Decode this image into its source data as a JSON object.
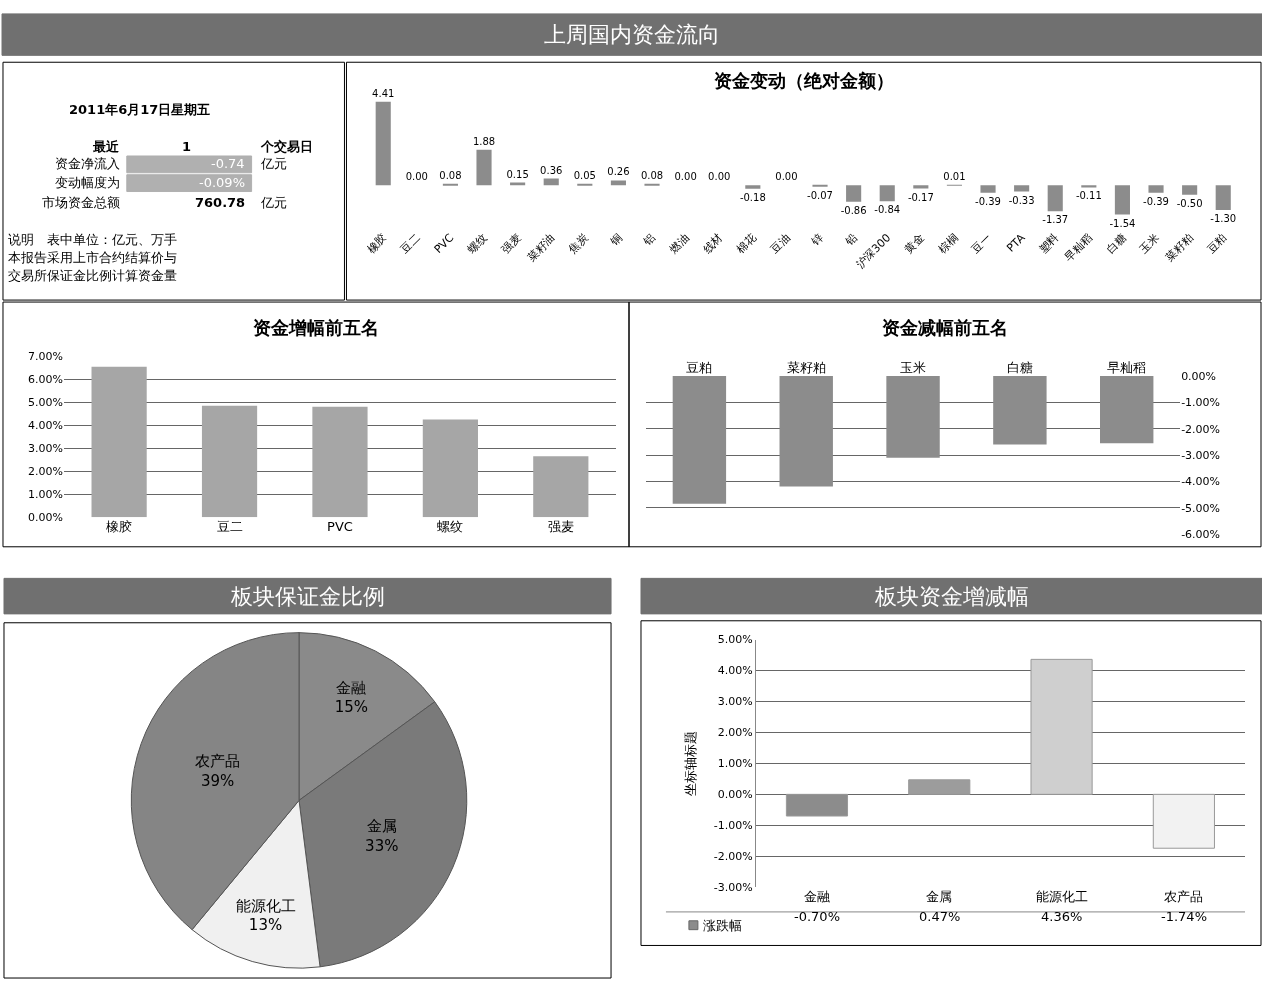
{
  "chart_data": [
    {
      "type": "other",
      "title": "上周国内资金流向",
      "annotations": [
        "2011年6月17日星期五",
        "最近",
        "1",
        "个交易日",
        "资金净流入",
        "-0.74",
        "亿元",
        "变动幅度为",
        "-0.09%",
        "市场资金总额",
        "760.78",
        "亿元",
        "说明　表中单位：亿元、万手",
        "本报告采用上市合约结算价与",
        "交易所保证金比例计算资金量"
      ]
    },
    {
      "type": "bar",
      "title": "资金变动（绝对金额）",
      "color": "#8c8c8c",
      "categories": [
        "橡胶",
        "豆二",
        "PVC",
        "螺纹",
        "强麦",
        "菜籽油",
        "焦炭",
        "铜",
        "铝",
        "燃油",
        "线材",
        "棉花",
        "豆油",
        "锌",
        "铅",
        "沪深300",
        "黄金",
        "棕榈",
        "豆一",
        "PTA",
        "塑料",
        "早籼稻",
        "白糖",
        "玉米",
        "菜籽粕",
        "豆粕"
      ],
      "values": [
        4.41,
        0.0,
        0.08,
        1.88,
        0.15,
        0.36,
        0.05,
        0.26,
        0.08,
        0.0,
        0.0,
        -0.18,
        0.0,
        -0.07,
        -0.86,
        -0.84,
        -0.17,
        0.01,
        -0.39,
        -0.33,
        -1.37,
        -0.11,
        -1.54,
        -0.39,
        -0.5,
        -1.3
      ],
      "value_labels": [
        "4.41",
        "0.00",
        "0.08",
        "1.88",
        "0.15",
        "0.36",
        "0.05",
        "0.26",
        "0.08",
        "0.00",
        "0.00",
        "-0.18",
        "0.00",
        "-0.07",
        "-0.86",
        "-0.84",
        "-0.17",
        "0.01",
        "-0.39",
        "-0.33",
        "-1.37",
        "-0.11",
        "-1.54",
        "-0.39",
        "-0.50",
        "-1.30"
      ]
    },
    {
      "type": "bar",
      "title": "资金增幅前五名",
      "color": "#a6a6a6",
      "categories": [
        "橡胶",
        "豆二",
        "PVC",
        "螺纹",
        "强麦"
      ],
      "values": [
        6.55,
        4.85,
        4.8,
        4.25,
        2.65
      ],
      "ylim": [
        0,
        7
      ],
      "yticks": [
        {
          "value": 0,
          "label": "0.00%"
        },
        {
          "value": 1,
          "label": "1.00%"
        },
        {
          "value": 2,
          "label": "2.00%"
        },
        {
          "value": 3,
          "label": "3.00%"
        },
        {
          "value": 4,
          "label": "4.00%"
        },
        {
          "value": 5,
          "label": "5.00%"
        },
        {
          "value": 6,
          "label": "6.00%"
        },
        {
          "value": 7,
          "label": "7.00%"
        }
      ],
      "grid": "y"
    },
    {
      "type": "bar",
      "title": "资金减幅前五名",
      "color": "#8c8c8c",
      "categories": [
        "豆粕",
        "菜籽粕",
        "玉米",
        "白糖",
        "早籼稻"
      ],
      "values": [
        -4.85,
        -4.2,
        -3.1,
        -2.6,
        -2.55
      ],
      "ylim": [
        -6,
        0
      ],
      "yticks": [
        {
          "value": 0,
          "label": "0.00%"
        },
        {
          "value": -1,
          "label": "-1.00%"
        },
        {
          "value": -2,
          "label": "-2.00%"
        },
        {
          "value": -3,
          "label": "-3.00%"
        },
        {
          "value": -4,
          "label": "-4.00%"
        },
        {
          "value": -5,
          "label": "-5.00%"
        },
        {
          "value": -6,
          "label": "-6.00%"
        }
      ],
      "grid": "y"
    },
    {
      "type": "pie",
      "title": "板块保证金比例",
      "categories": [
        "金融",
        "金属",
        "能源化工",
        "农产品"
      ],
      "values": [
        15,
        33,
        13,
        39
      ],
      "value_labels": [
        "15%",
        "33%",
        "13%",
        "39%"
      ],
      "colors": [
        "#8a8a8a",
        "#7a7a7a",
        "#f0f0f0",
        "#858585"
      ]
    },
    {
      "type": "bar",
      "title": "板块资金增减幅",
      "ylabel": "坐标轴标题",
      "categories": [
        "金融",
        "金属",
        "能源化工",
        "农产品"
      ],
      "series": [
        {
          "name": "涨跌幅",
          "colors": [
            "#8c8c8c",
            "#9c9c9c",
            "#cfcfcf",
            "#f2f2f2"
          ],
          "values": [
            -0.7,
            0.47,
            4.36,
            -1.74
          ],
          "value_labels": [
            "-0.70%",
            "0.47%",
            "4.36%",
            "-1.74%"
          ]
        }
      ],
      "ylim": [
        -3,
        5
      ],
      "yticks": [
        {
          "value": -3,
          "label": "-3.00%"
        },
        {
          "value": -2,
          "label": "-2.00%"
        },
        {
          "value": -1,
          "label": "-1.00%"
        },
        {
          "value": 0,
          "label": "0.00%"
        },
        {
          "value": 1,
          "label": "1.00%"
        },
        {
          "value": 2,
          "label": "2.00%"
        },
        {
          "value": 3,
          "label": "3.00%"
        },
        {
          "value": 4,
          "label": "4.00%"
        },
        {
          "value": 5,
          "label": "5.00%"
        }
      ],
      "grid": "y"
    }
  ]
}
